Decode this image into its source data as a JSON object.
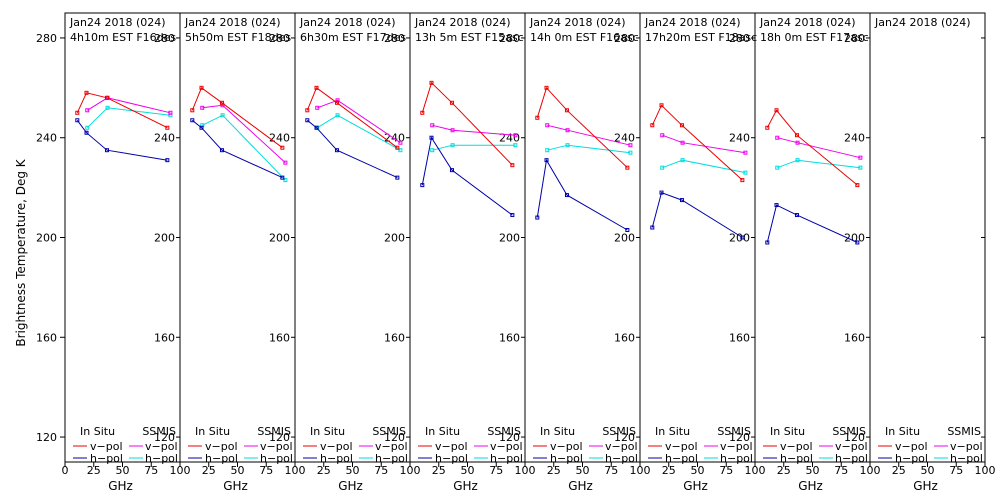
{
  "chart_data": {
    "type": "line",
    "ylabel": "Brightness Temperature, Deg K",
    "xlabel": "GHz",
    "ylim": [
      110,
      290
    ],
    "xlim": [
      0,
      100
    ],
    "yticks": [
      120,
      160,
      200,
      240,
      280
    ],
    "xticks": [
      "0",
      "25",
      "50",
      "75",
      "100"
    ],
    "xticks_inner": [
      "25",
      "50",
      "75",
      "100"
    ],
    "legend": {
      "insitu": "In Situ",
      "ssmis": "SSMIS",
      "vpol": "v−pol",
      "hpol": "h−pol"
    },
    "colors": {
      "insitu_v": "#ee0000",
      "insitu_h": "#0000aa",
      "ssmis_v": "#ee00ee",
      "ssmis_h": "#00dddd"
    },
    "panels": [
      {
        "date": "Jan24 2018 (024)",
        "time": "4h10m EST F16des",
        "insitu_v": {
          "x": [
            10.7,
            18.7,
            36.5,
            89
          ],
          "y": [
            250,
            258,
            256,
            244
          ]
        },
        "insitu_h": {
          "x": [
            10.7,
            18.7,
            36.5,
            89
          ],
          "y": [
            247,
            242,
            235,
            231
          ]
        },
        "ssmis_v": {
          "x": [
            19.35,
            37,
            91.65
          ],
          "y": [
            251,
            256,
            250
          ]
        },
        "ssmis_h": {
          "x": [
            19.35,
            37,
            91.65
          ],
          "y": [
            244,
            252,
            249
          ]
        }
      },
      {
        "date": "Jan24 2018 (024)",
        "time": "5h50m EST F18des",
        "insitu_v": {
          "x": [
            10.7,
            18.7,
            36.5,
            89
          ],
          "y": [
            251,
            260,
            254,
            236
          ]
        },
        "insitu_h": {
          "x": [
            10.7,
            18.7,
            36.5,
            89
          ],
          "y": [
            247,
            244,
            235,
            224
          ]
        },
        "ssmis_v": {
          "x": [
            19.35,
            37,
            91.65
          ],
          "y": [
            252,
            253,
            230
          ]
        },
        "ssmis_h": {
          "x": [
            19.35,
            37,
            91.65
          ],
          "y": [
            245,
            249,
            223
          ]
        }
      },
      {
        "date": "Jan24 2018 (024)",
        "time": "6h30m EST F17des",
        "insitu_v": {
          "x": [
            10.7,
            18.7,
            36.5,
            89
          ],
          "y": [
            251,
            260,
            254,
            236
          ]
        },
        "insitu_h": {
          "x": [
            10.7,
            18.7,
            36.5,
            89
          ],
          "y": [
            247,
            244,
            235,
            224
          ]
        },
        "ssmis_v": {
          "x": [
            19.35,
            37,
            91.65
          ],
          "y": [
            252,
            255,
            238
          ]
        },
        "ssmis_h": {
          "x": [
            19.35,
            37,
            91.65
          ],
          "y": [
            244,
            249,
            235
          ]
        }
      },
      {
        "date": "Jan24 2018 (024)",
        "time": "13h 5m EST F15asc",
        "insitu_v": {
          "x": [
            10.7,
            18.7,
            36.5,
            89
          ],
          "y": [
            250,
            262,
            254,
            229
          ]
        },
        "insitu_h": {
          "x": [
            10.7,
            18.7,
            36.5,
            89
          ],
          "y": [
            221,
            240,
            227,
            209
          ]
        },
        "ssmis_v": {
          "x": [
            19.35,
            37,
            91.65
          ],
          "y": [
            245,
            243,
            241
          ]
        },
        "ssmis_h": {
          "x": [
            19.35,
            37,
            91.65
          ],
          "y": [
            235,
            237,
            237
          ]
        }
      },
      {
        "date": "Jan24 2018 (024)",
        "time": "14h 0m EST F16asc",
        "insitu_v": {
          "x": [
            10.7,
            18.7,
            36.5,
            89
          ],
          "y": [
            248,
            260,
            251,
            228
          ]
        },
        "insitu_h": {
          "x": [
            10.7,
            18.7,
            36.5,
            89
          ],
          "y": [
            208,
            231,
            217,
            203
          ]
        },
        "ssmis_v": {
          "x": [
            19.35,
            37,
            91.65
          ],
          "y": [
            245,
            243,
            237
          ]
        },
        "ssmis_h": {
          "x": [
            19.35,
            37,
            91.65
          ],
          "y": [
            235,
            237,
            234
          ]
        }
      },
      {
        "date": "Jan24 2018 (024)",
        "time": "17h20m EST F18asc",
        "insitu_v": {
          "x": [
            10.7,
            18.7,
            36.5,
            89
          ],
          "y": [
            245,
            253,
            245,
            223
          ]
        },
        "insitu_h": {
          "x": [
            10.7,
            18.7,
            36.5,
            89
          ],
          "y": [
            204,
            218,
            215,
            200
          ]
        },
        "ssmis_v": {
          "x": [
            19.35,
            37,
            91.65
          ],
          "y": [
            241,
            238,
            234
          ]
        },
        "ssmis_h": {
          "x": [
            19.35,
            37,
            91.65
          ],
          "y": [
            228,
            231,
            226
          ]
        }
      },
      {
        "date": "Jan24 2018 (024)",
        "time": "18h 0m EST F17asc",
        "insitu_v": {
          "x": [
            10.7,
            18.7,
            36.5,
            89
          ],
          "y": [
            244,
            251,
            241,
            221
          ]
        },
        "insitu_h": {
          "x": [
            10.7,
            18.7,
            36.5,
            89
          ],
          "y": [
            198,
            213,
            209,
            198
          ]
        },
        "ssmis_v": {
          "x": [
            19.35,
            37,
            91.65
          ],
          "y": [
            240,
            238,
            232
          ]
        },
        "ssmis_h": {
          "x": [
            19.35,
            37,
            91.65
          ],
          "y": [
            228,
            231,
            228
          ]
        }
      },
      {
        "date": "Jan24 2018 (024)",
        "time": "",
        "insitu_v": {
          "x": [],
          "y": []
        },
        "insitu_h": {
          "x": [],
          "y": []
        },
        "ssmis_v": {
          "x": [],
          "y": []
        },
        "ssmis_h": {
          "x": [],
          "y": []
        }
      }
    ]
  }
}
